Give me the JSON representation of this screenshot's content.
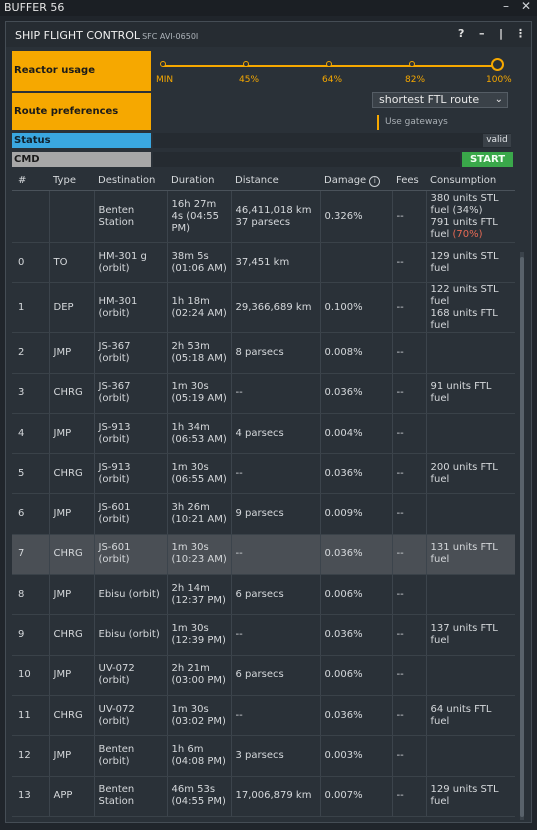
{
  "outer": {
    "title": "BUFFER 56"
  },
  "window": {
    "title": "SHIP FLIGHT CONTROL",
    "subtitle": "SFC AVI-0650I"
  },
  "reactor": {
    "label": "Reactor usage",
    "ticks": [
      "MIN",
      "45%",
      "64%",
      "82%",
      "100%"
    ],
    "selected": "100%"
  },
  "route_pref": {
    "label": "Route preferences",
    "selected": "shortest FTL route",
    "gateways_label": "Use gateways"
  },
  "status": {
    "label": "Status",
    "value": "valid"
  },
  "cmd": {
    "label": "CMD",
    "start_label": "START"
  },
  "table": {
    "headers": [
      "#",
      "Type",
      "Destination",
      "Duration",
      "Distance",
      "Damage",
      "Fees",
      "Consumption"
    ],
    "summary": {
      "destination": "Benten Station",
      "duration": "16h 27m 4s (04:55 PM)",
      "distance_l1": "46,411,018 km",
      "distance_l2": "37 parsecs",
      "damage": "0.326%",
      "fees": "--",
      "cons_l1": "380 units STL fuel ",
      "cons_l1_pct": "(34%)",
      "cons_l2": "791 units FTL fuel ",
      "cons_l2_pct": "(70%)"
    },
    "rows": [
      {
        "n": "0",
        "type": "TO",
        "dest": "HM-301 g (orbit)",
        "dur": "38m 5s (01:06 AM)",
        "dist": "37,451 km",
        "dmg": "",
        "fees": "--",
        "cons": "129 units STL fuel",
        "cons2": ""
      },
      {
        "n": "1",
        "type": "DEP",
        "dest": "HM-301 (orbit)",
        "dur": "1h 18m (02:24 AM)",
        "dist": "29,366,689 km",
        "dmg": "0.100%",
        "fees": "--",
        "cons": "122 units STL fuel",
        "cons2": "168 units FTL fuel"
      },
      {
        "n": "2",
        "type": "JMP",
        "dest": "JS-367 (orbit)",
        "dur": "2h 53m (05:18 AM)",
        "dist": "8 parsecs",
        "dmg": "0.008%",
        "fees": "--",
        "cons": "",
        "cons2": ""
      },
      {
        "n": "3",
        "type": "CHRG",
        "dest": "JS-367 (orbit)",
        "dur": "1m 30s (05:19 AM)",
        "dist": "--",
        "dmg": "0.036%",
        "fees": "--",
        "cons": "91 units FTL fuel",
        "cons2": ""
      },
      {
        "n": "4",
        "type": "JMP",
        "dest": "JS-913 (orbit)",
        "dur": "1h 34m (06:53 AM)",
        "dist": "4 parsecs",
        "dmg": "0.004%",
        "fees": "--",
        "cons": "",
        "cons2": ""
      },
      {
        "n": "5",
        "type": "CHRG",
        "dest": "JS-913 (orbit)",
        "dur": "1m 30s (06:55 AM)",
        "dist": "--",
        "dmg": "0.036%",
        "fees": "--",
        "cons": "200 units FTL fuel",
        "cons2": ""
      },
      {
        "n": "6",
        "type": "JMP",
        "dest": "JS-601 (orbit)",
        "dur": "3h 26m (10:21 AM)",
        "dist": "9 parsecs",
        "dmg": "0.009%",
        "fees": "--",
        "cons": "",
        "cons2": ""
      },
      {
        "n": "7",
        "type": "CHRG",
        "dest": "JS-601 (orbit)",
        "dur": "1m 30s (10:23 AM)",
        "dist": "--",
        "dmg": "0.036%",
        "fees": "--",
        "cons": "131 units FTL fuel",
        "cons2": ""
      },
      {
        "n": "8",
        "type": "JMP",
        "dest": "Ebisu (orbit)",
        "dur": "2h 14m (12:37 PM)",
        "dist": "6 parsecs",
        "dmg": "0.006%",
        "fees": "--",
        "cons": "",
        "cons2": ""
      },
      {
        "n": "9",
        "type": "CHRG",
        "dest": "Ebisu (orbit)",
        "dur": "1m 30s (12:39 PM)",
        "dist": "--",
        "dmg": "0.036%",
        "fees": "--",
        "cons": "137 units FTL fuel",
        "cons2": ""
      },
      {
        "n": "10",
        "type": "JMP",
        "dest": "UV-072 (orbit)",
        "dur": "2h 21m (03:00 PM)",
        "dist": "6 parsecs",
        "dmg": "0.006%",
        "fees": "--",
        "cons": "",
        "cons2": ""
      },
      {
        "n": "11",
        "type": "CHRG",
        "dest": "UV-072 (orbit)",
        "dur": "1m 30s (03:02 PM)",
        "dist": "--",
        "dmg": "0.036%",
        "fees": "--",
        "cons": "64 units FTL fuel",
        "cons2": ""
      },
      {
        "n": "12",
        "type": "JMP",
        "dest": "Benten (orbit)",
        "dur": "1h 6m (04:08 PM)",
        "dist": "3 parsecs",
        "dmg": "0.003%",
        "fees": "--",
        "cons": "",
        "cons2": ""
      },
      {
        "n": "13",
        "type": "APP",
        "dest": "Benten Station",
        "dur": "46m 53s (04:55 PM)",
        "dist": "17,006,879 km",
        "dmg": "0.007%",
        "fees": "--",
        "cons": "129 units STL fuel",
        "cons2": ""
      }
    ],
    "selected_row": "7"
  },
  "colors": {
    "accent": "#f6a800",
    "status": "#3aa7e0",
    "start": "#3aa84a",
    "link": "#5aa7e6",
    "warn": "#e66a55"
  },
  "icons": [
    "help-icon",
    "minimize-icon",
    "pin-icon",
    "menu-icon",
    "close-icon",
    "info-icon",
    "chevron-down-icon"
  ]
}
